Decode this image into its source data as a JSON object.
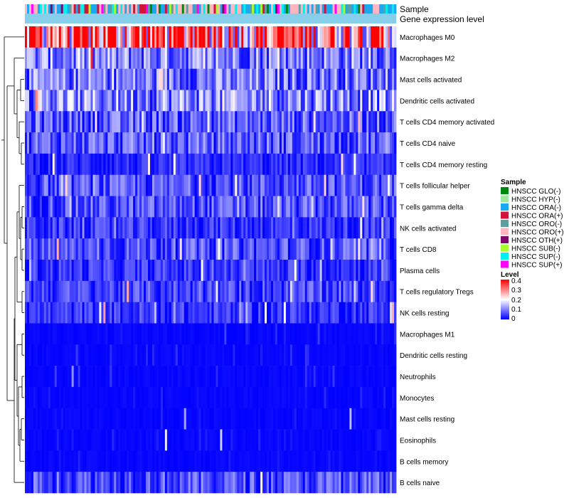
{
  "chart_data": {
    "type": "heatmap",
    "title": "",
    "annotation_labels": [
      "Sample",
      "Gene expression level"
    ],
    "rows": [
      "Macrophages M0",
      "Macrophages M2",
      "Mast cells activated",
      "Dendritic cells activated",
      "T cells CD4 memory activated",
      "T cells CD4 naive",
      "T cells CD4 memory resting",
      "T cells follicular helper",
      "T cells gamma delta",
      "NK cells activated",
      "T cells CD8",
      "Plasma cells",
      "T cells regulatory  Tregs",
      "NK cells resting",
      "Macrophages M1",
      "Dendritic cells resting",
      "Neutrophils",
      "Monocytes",
      "Mast cells resting",
      "Eosinophils",
      "B cells memory",
      "B cells naive"
    ],
    "row_mean_levels": [
      0.32,
      0.1,
      0.09,
      0.11,
      0.07,
      0.07,
      0.03,
      0.06,
      0.06,
      0.04,
      0.06,
      0.04,
      0.05,
      0.04,
      0.02,
      0.02,
      0.02,
      0.01,
      0.01,
      0.01,
      0.01,
      0.06
    ],
    "sample_count": 175,
    "sample_legend": {
      "title": "Sample",
      "items": [
        {
          "label": "HNSCC GLO(-)",
          "color": "#00870f"
        },
        {
          "label": "HNSCC HYP(-)",
          "color": "#a0e8a0"
        },
        {
          "label": "HNSCC ORA(-)",
          "color": "#1ca8ee"
        },
        {
          "label": "HNSCC ORA(+)",
          "color": "#d0143c"
        },
        {
          "label": "HNSCC ORO(-)",
          "color": "#5f9ea0"
        },
        {
          "label": "HNSCC ORO(+)",
          "color": "#ffb6c1"
        },
        {
          "label": "HNSCC OTH(+)",
          "color": "#7e0a6c"
        },
        {
          "label": "HNSCC SUB(-)",
          "color": "#a8ff2f"
        },
        {
          "label": "HNSCC SUP(-)",
          "color": "#00f0ee"
        },
        {
          "label": "HNSCC SUP(+)",
          "color": "#ff00ff"
        }
      ]
    },
    "level_legend": {
      "title": "Level",
      "ticks": [
        "0.4",
        "0.3",
        "0.2",
        "0.1",
        "0"
      ],
      "range": [
        0,
        0.4
      ],
      "colors": {
        "low": "#0000ff",
        "mid": "#ffffff",
        "high": "#ff0000"
      }
    },
    "gene_expression_bar_color": "#87ceeb"
  }
}
